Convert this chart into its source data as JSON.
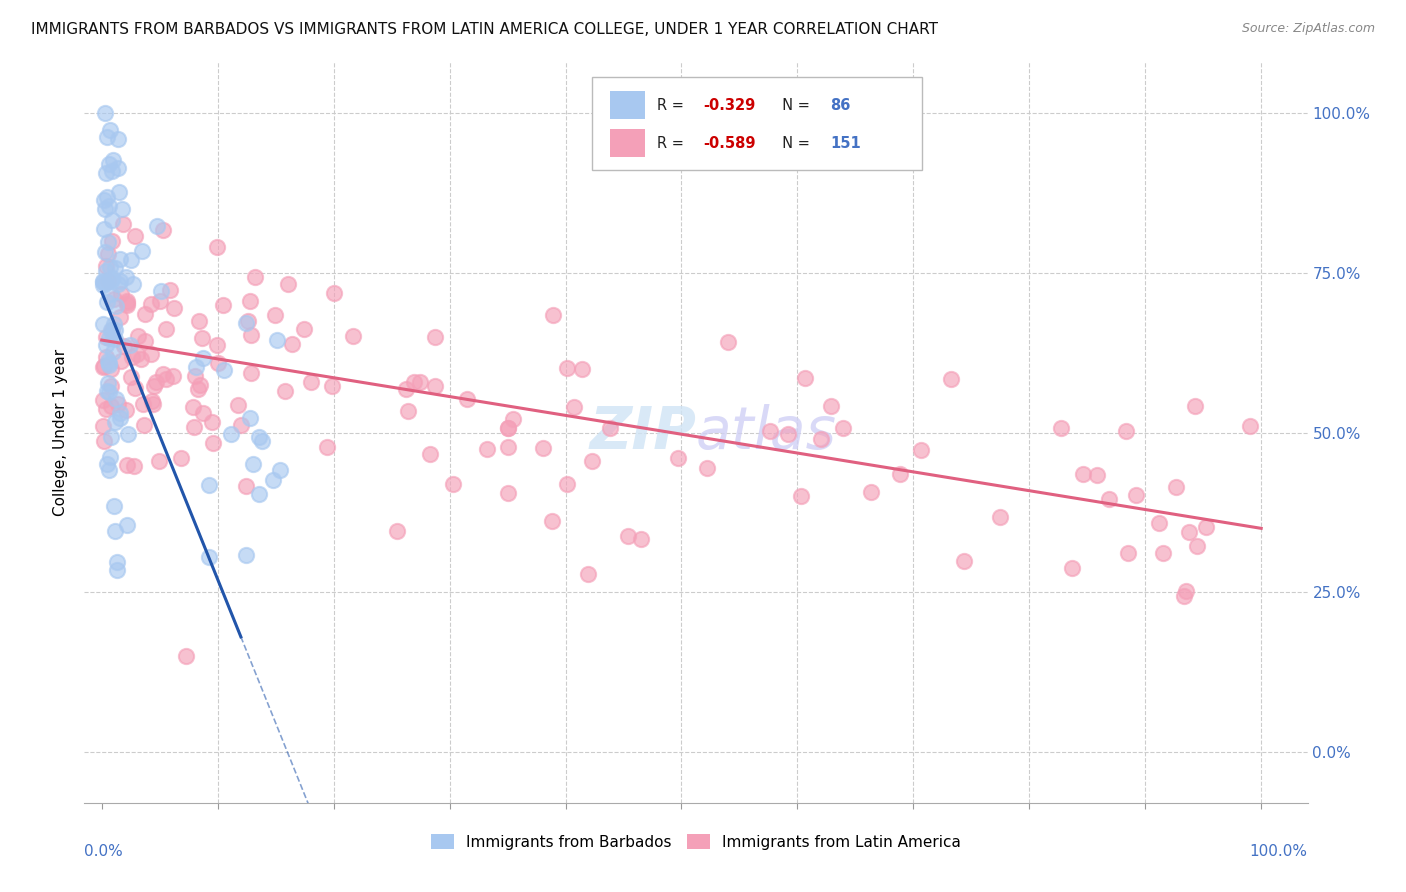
{
  "title": "IMMIGRANTS FROM BARBADOS VS IMMIGRANTS FROM LATIN AMERICA COLLEGE, UNDER 1 YEAR CORRELATION CHART",
  "source": "Source: ZipAtlas.com",
  "ylabel": "College, Under 1 year",
  "legend_label1": "Immigrants from Barbados",
  "legend_label2": "Immigrants from Latin America",
  "color_barbados": "#a8c8f0",
  "color_latam": "#f4a0b8",
  "color_barbados_line": "#2255aa",
  "color_latam_line": "#e06080",
  "background": "#ffffff",
  "grid_color": "#cccccc",
  "watermark": "ZIPatlas",
  "yticks": [
    0.0,
    0.25,
    0.5,
    0.75,
    1.0
  ],
  "ytick_labels": [
    "0.0%",
    "25.0%",
    "50.0%",
    "75.0%",
    "100.0%"
  ],
  "xtick_labels": [
    "0.0%",
    "100.0%"
  ]
}
